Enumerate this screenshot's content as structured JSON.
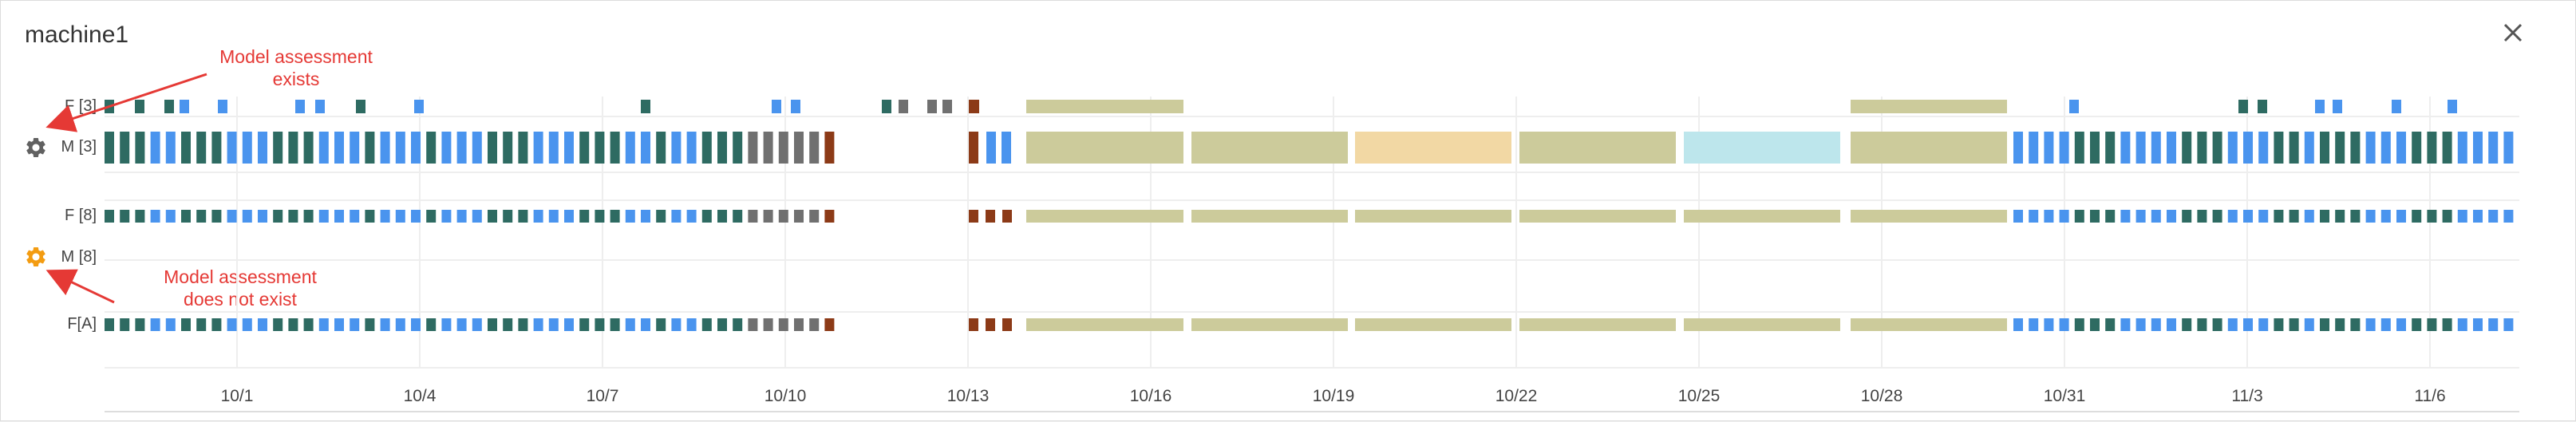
{
  "window": {
    "title": "machine1",
    "close_icon": "close-icon"
  },
  "rows": [
    {
      "id": "F3",
      "label": "F [3]"
    },
    {
      "id": "M3",
      "label": "M [3]",
      "gear_icon": "gear-icon",
      "gear_color": "#616161"
    },
    {
      "id": "F8",
      "label": "F [8]"
    },
    {
      "id": "M8",
      "label": "M [8]",
      "gear_icon": "gear-icon",
      "gear_color": "#f39c12"
    },
    {
      "id": "FA",
      "label": "F[A]"
    }
  ],
  "annotations": [
    {
      "line1": "Model assessment",
      "line2": "exists"
    },
    {
      "line1": "Model assessment",
      "line2": "does not exist"
    }
  ],
  "xaxis": {
    "ticks": [
      "10/1",
      "10/4",
      "10/7",
      "10/10",
      "10/13",
      "10/16",
      "10/19",
      "10/22",
      "10/25",
      "10/28",
      "10/31",
      "11/3",
      "11/6"
    ]
  },
  "colors": {
    "dark_teal": "#2e6b62",
    "blue": "#4a94ee",
    "gray": "#707070",
    "rust": "#8c3a17",
    "khaki": "#cccb9b",
    "peach": "#f2d8a4",
    "light_cyan": "#bde6ec",
    "annotation_red": "#e53935",
    "grid": "#eeeeee"
  }
}
